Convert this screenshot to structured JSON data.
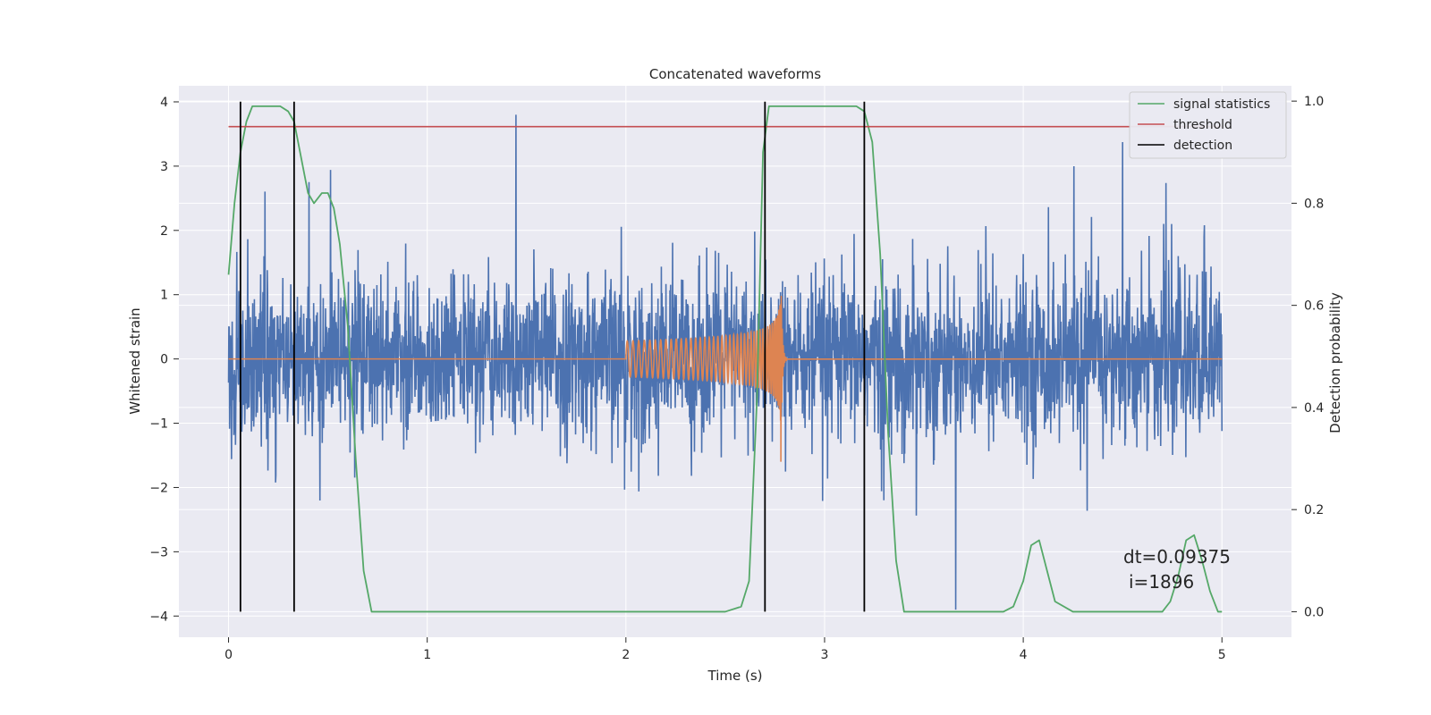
{
  "chart_data": {
    "type": "line",
    "title": "Concatenated waveforms",
    "xlabel": "Time (s)",
    "ylabel": "Whitened strain",
    "ylabel_right": "Detection probability",
    "xlim": [
      -0.25,
      5.35
    ],
    "ylim": [
      -4.33,
      4.25
    ],
    "ylim_right": [
      -0.05,
      1.03
    ],
    "x_ticks": [
      0,
      1,
      2,
      3,
      4,
      5
    ],
    "x_tick_labels": [
      "0",
      "1",
      "2",
      "3",
      "4",
      "5"
    ],
    "y_ticks": [
      4,
      3,
      2,
      1,
      0,
      -1,
      -2,
      -3,
      -4
    ],
    "y_tick_labels": [
      "4",
      "3",
      "2",
      "1",
      "0",
      "−1",
      "−2",
      "−3",
      "−4"
    ],
    "y_ticks_right": [
      1.0,
      0.8,
      0.6,
      0.4,
      0.2,
      0.0
    ],
    "y_tick_labels_right": [
      "1.0",
      "0.8",
      "0.6",
      "0.4",
      "0.2",
      "0.0"
    ],
    "grid": true,
    "legend_position": "top-right",
    "colors": {
      "noise": "#4c72b0",
      "waveform": "#dd8452",
      "signal": "#55a868",
      "threshold": "#c44e52",
      "detection": "#000000",
      "background": "#eaeaf2",
      "grid": "#ffffff"
    },
    "series": [
      {
        "name": "",
        "kind": "noisy_strain",
        "axis": "left",
        "x_range": [
          0,
          5
        ],
        "envelope_typical": [
          -1.5,
          1.5
        ],
        "peak_max": 3.8,
        "peak_min": -3.9
      },
      {
        "name": "",
        "kind": "injected_chirp",
        "axis": "left",
        "x_range": [
          2.0,
          2.8
        ],
        "start_amplitude": 0.28,
        "peak_amplitude": 1.25,
        "merger_time": 2.78
      },
      {
        "name": "signal statistics",
        "axis": "right",
        "x": [
          0,
          0.03,
          0.06,
          0.09,
          0.12,
          0.2,
          0.26,
          0.3,
          0.33,
          0.36,
          0.4,
          0.43,
          0.47,
          0.5,
          0.53,
          0.56,
          0.6,
          0.64,
          0.68,
          0.72,
          1.0,
          2.0,
          2.5,
          2.58,
          2.62,
          2.66,
          2.69,
          2.72,
          2.76,
          3.0,
          3.16,
          3.2,
          3.24,
          3.28,
          3.32,
          3.36,
          3.4,
          3.5,
          3.9,
          3.95,
          4.0,
          4.04,
          4.08,
          4.12,
          4.16,
          4.25,
          4.7,
          4.74,
          4.78,
          4.82,
          4.86,
          4.9,
          4.94,
          4.98,
          5.0
        ],
        "y": [
          0.66,
          0.8,
          0.9,
          0.96,
          0.99,
          0.99,
          0.99,
          0.98,
          0.96,
          0.9,
          0.82,
          0.8,
          0.82,
          0.82,
          0.79,
          0.72,
          0.56,
          0.3,
          0.08,
          0.0,
          0.0,
          0.0,
          0.0,
          0.01,
          0.06,
          0.42,
          0.9,
          0.99,
          0.99,
          0.99,
          0.99,
          0.98,
          0.92,
          0.7,
          0.35,
          0.1,
          0.0,
          0.0,
          0.0,
          0.01,
          0.06,
          0.13,
          0.14,
          0.08,
          0.02,
          0.0,
          0.0,
          0.02,
          0.07,
          0.14,
          0.15,
          0.1,
          0.04,
          0.0,
          0.0
        ]
      },
      {
        "name": "threshold",
        "axis": "right",
        "x": [
          0,
          5
        ],
        "y": [
          0.95,
          0.95
        ]
      },
      {
        "name": "detection",
        "axis": "right",
        "kind": "vertical_lines",
        "x": [
          0.06,
          0.33,
          2.7,
          3.2
        ],
        "y_range": [
          0.0,
          0.999
        ]
      }
    ],
    "legend": [
      "signal statistics",
      "threshold",
      "detection"
    ],
    "annotations": [
      "dt=0.09375",
      "i=1896"
    ]
  }
}
